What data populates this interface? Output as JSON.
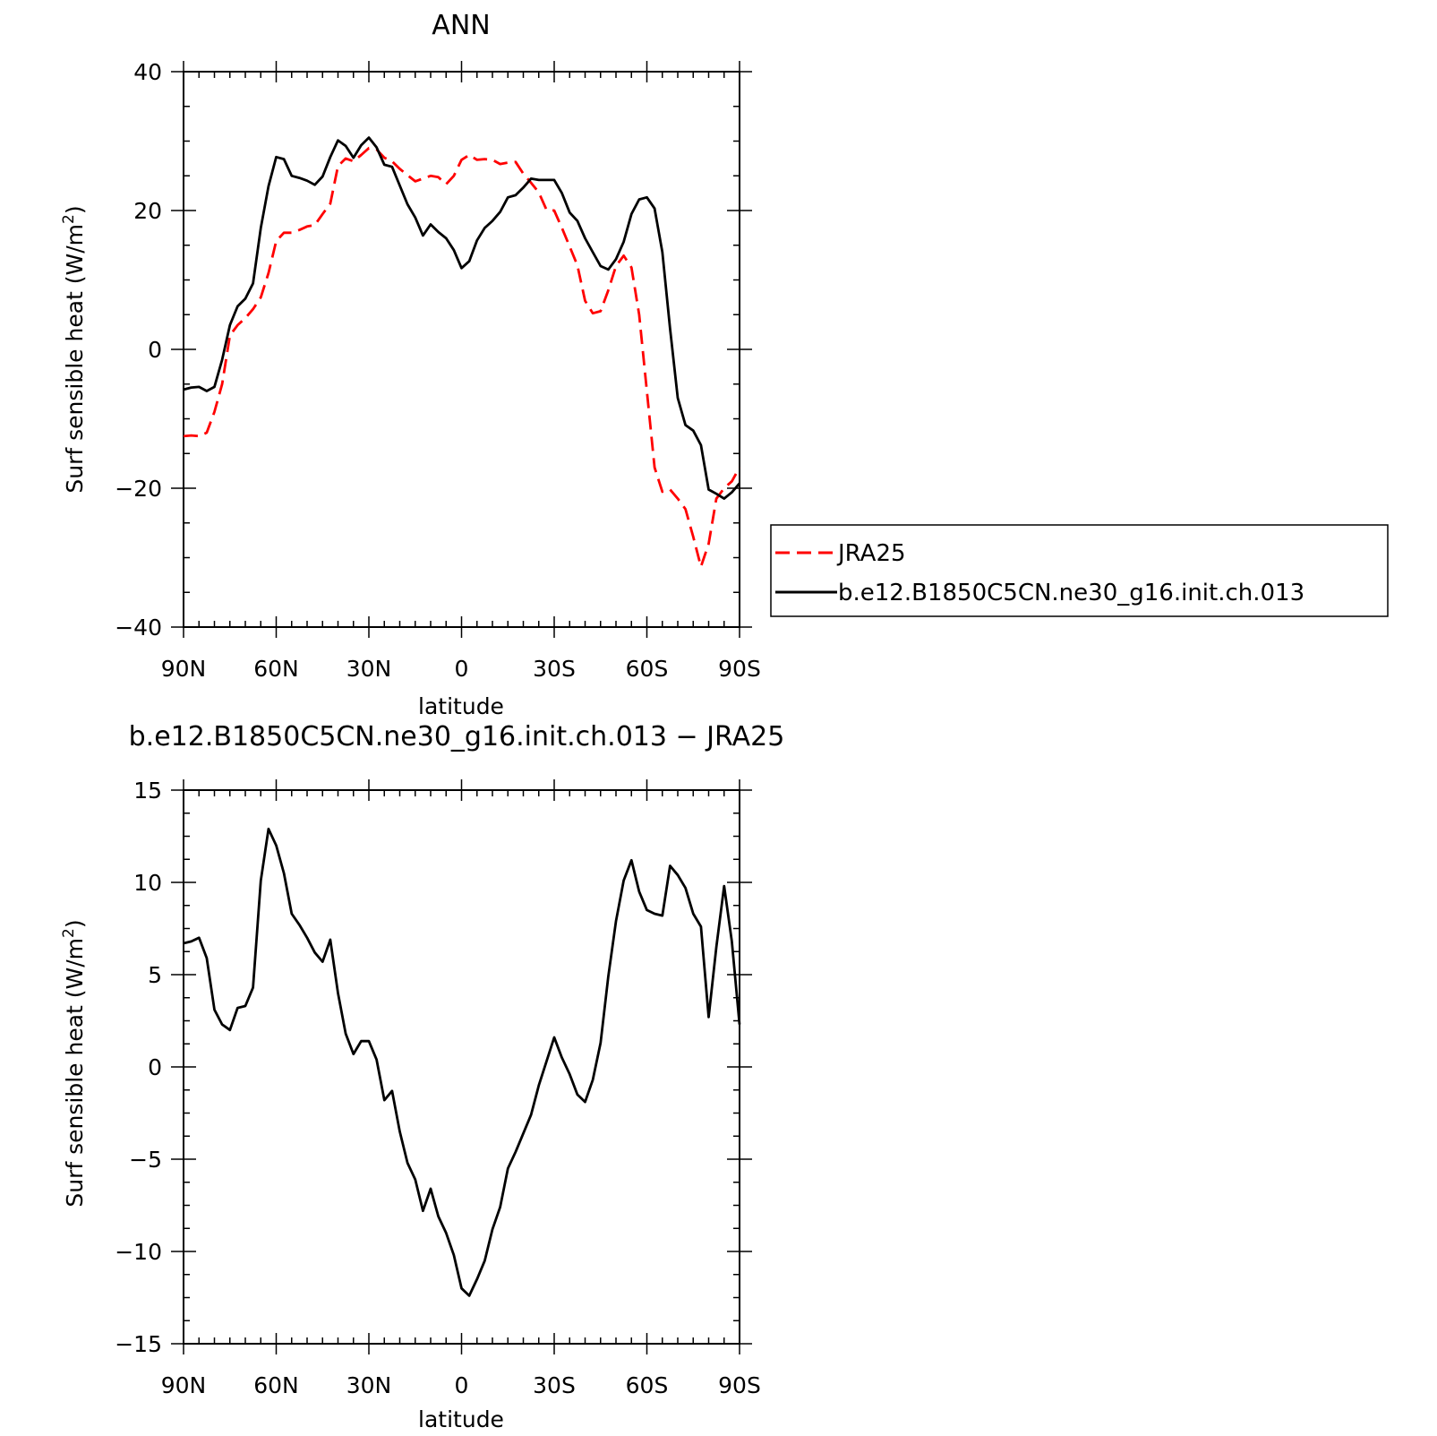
{
  "chart_data": [
    {
      "type": "line",
      "title": "ANN",
      "xlabel": "latitude",
      "ylabel_main": "Surf sensible heat (W/m",
      "ylabel_sup": "2",
      "ylabel_close": ")",
      "xlim": [
        90,
        -90
      ],
      "ylim": [
        -40,
        40
      ],
      "xticks": [
        90,
        60,
        30,
        0,
        -30,
        -60,
        -90
      ],
      "xtick_labels": [
        "90N",
        "60N",
        "30N",
        "0",
        "30S",
        "60S",
        "90S"
      ],
      "yticks": [
        -40,
        -20,
        0,
        20,
        40
      ],
      "ytick_labels": [
        "−40",
        "−20",
        "0",
        "20",
        "40"
      ],
      "legend_position": "right",
      "series": [
        {
          "name": "JRA25",
          "color": "#ff0000",
          "dash": "dashed",
          "x": [
            90,
            87.5,
            85,
            82.5,
            80,
            77.5,
            75,
            72.5,
            70,
            67.5,
            65,
            62.5,
            60,
            57.5,
            55,
            52.5,
            50,
            47.5,
            45,
            42.5,
            40,
            37.5,
            35,
            32.5,
            30,
            27.5,
            25,
            22.5,
            20,
            17.5,
            15,
            12.5,
            10,
            7.5,
            5,
            2.5,
            0,
            -2.5,
            -5,
            -7.5,
            -10,
            -12.5,
            -15,
            -17.5,
            -20,
            -22.5,
            -25,
            -27.5,
            -30,
            -32.5,
            -35,
            -37.5,
            -40,
            -42.5,
            -45,
            -47.5,
            -50,
            -52.5,
            -55,
            -57.5,
            -60,
            -62.5,
            -65,
            -67.5,
            -70,
            -72.5,
            -75,
            -77.5,
            -80,
            -82.5,
            -85,
            -87.5,
            -90
          ],
          "values": [
            -12.5,
            -12.4,
            -12.5,
            -12.0,
            -9.0,
            -5.0,
            2.0,
            3.5,
            4.5,
            5.8,
            7.5,
            11.0,
            15.6,
            16.8,
            16.8,
            17.2,
            17.7,
            17.9,
            19.5,
            21.0,
            26.4,
            27.5,
            27.1,
            28.0,
            29.0,
            28.8,
            27.6,
            27.1,
            26.0,
            25.1,
            24.2,
            24.6,
            25.0,
            24.8,
            23.8,
            25.0,
            27.3,
            28.0,
            27.3,
            27.4,
            27.3,
            26.7,
            26.9,
            27.0,
            25.3,
            24.0,
            22.6,
            20.1,
            20.0,
            17.5,
            14.8,
            12.1,
            7.0,
            5.2,
            5.5,
            8.5,
            12.0,
            13.5,
            11.8,
            5.0,
            -6.0,
            -17.0,
            -20.5,
            -20.2,
            -21.5,
            -23.0,
            -27.0,
            -31.3,
            -28.0,
            -21.5,
            -20.0,
            -19.0,
            -17.0
          ]
        },
        {
          "name": "b.e12.B1850C5CN.ne30_g16.init.ch.013",
          "color": "#000000",
          "dash": "solid",
          "x": [
            90,
            87.5,
            85,
            82.5,
            80,
            77.5,
            75,
            72.5,
            70,
            67.5,
            65,
            62.5,
            60,
            57.5,
            55,
            52.5,
            50,
            47.5,
            45,
            42.5,
            40,
            37.5,
            35,
            32.5,
            30,
            27.5,
            25,
            22.5,
            20,
            17.5,
            15,
            12.5,
            10,
            7.5,
            5,
            2.5,
            0,
            -2.5,
            -5,
            -7.5,
            -10,
            -12.5,
            -15,
            -17.5,
            -20,
            -22.5,
            -25,
            -27.5,
            -30,
            -32.5,
            -35,
            -37.5,
            -40,
            -42.5,
            -45,
            -47.5,
            -50,
            -52.5,
            -55,
            -57.5,
            -60,
            -62.5,
            -65,
            -67.5,
            -70,
            -72.5,
            -75,
            -77.5,
            -80,
            -82.5,
            -85,
            -87.5,
            -90
          ],
          "values": [
            -5.8,
            -5.5,
            -5.4,
            -6.0,
            -5.4,
            -1.5,
            3.5,
            6.2,
            7.3,
            9.5,
            17.5,
            23.5,
            27.7,
            27.4,
            25.0,
            24.7,
            24.3,
            23.7,
            24.9,
            27.7,
            30.1,
            29.3,
            27.6,
            29.4,
            30.5,
            29.1,
            26.6,
            26.3,
            23.6,
            20.9,
            19.0,
            16.4,
            18.0,
            16.9,
            16.0,
            14.3,
            11.7,
            12.7,
            15.7,
            17.5,
            18.5,
            19.8,
            21.9,
            22.2,
            23.3,
            24.6,
            24.4,
            24.4,
            24.4,
            22.5,
            19.7,
            18.5,
            16.0,
            14.0,
            12.0,
            11.5,
            13.0,
            15.5,
            19.5,
            21.6,
            21.9,
            20.3,
            14.0,
            3.0,
            -7.0,
            -10.9,
            -11.7,
            -13.8,
            -20.2,
            -20.8,
            -21.5,
            -20.6,
            -19.3
          ]
        }
      ]
    },
    {
      "type": "line",
      "title": "b.e12.B1850C5CN.ne30_g16.init.ch.013 − JRA25",
      "xlabel": "latitude",
      "ylabel_main": "Surf sensible heat (W/m",
      "ylabel_sup": "2",
      "ylabel_close": ")",
      "xlim": [
        90,
        -90
      ],
      "ylim": [
        -15,
        15
      ],
      "xticks": [
        90,
        60,
        30,
        0,
        -30,
        -60,
        -90
      ],
      "xtick_labels": [
        "90N",
        "60N",
        "30N",
        "0",
        "30S",
        "60S",
        "90S"
      ],
      "yticks": [
        -15,
        -10,
        -5,
        0,
        5,
        10,
        15
      ],
      "ytick_labels": [
        "−15",
        "−10",
        "−5",
        "0",
        "5",
        "10",
        "15"
      ],
      "series": [
        {
          "color": "#000000",
          "dash": "solid",
          "x": [
            90,
            87.5,
            85,
            82.5,
            80,
            77.5,
            75,
            72.5,
            70,
            67.5,
            65,
            62.5,
            60,
            57.5,
            55,
            52.5,
            50,
            47.5,
            45,
            42.5,
            40,
            37.5,
            35,
            32.5,
            30,
            27.5,
            25,
            22.5,
            20,
            17.5,
            15,
            12.5,
            10,
            7.5,
            5,
            2.5,
            0,
            -2.5,
            -5,
            -7.5,
            -10,
            -12.5,
            -15,
            -17.5,
            -20,
            -22.5,
            -25,
            -27.5,
            -30,
            -32.5,
            -35,
            -37.5,
            -40,
            -42.5,
            -45,
            -47.5,
            -50,
            -52.5,
            -55,
            -57.5,
            -60,
            -62.5,
            -65,
            -67.5,
            -70,
            -72.5,
            -75,
            -77.5,
            -80,
            -82.5,
            -85,
            -87.5,
            -90
          ],
          "values": [
            6.7,
            6.8,
            7.0,
            5.9,
            3.1,
            2.3,
            2.0,
            3.2,
            3.3,
            4.3,
            10.1,
            12.9,
            12.0,
            10.5,
            8.3,
            7.7,
            7.0,
            6.2,
            5.7,
            6.9,
            4.0,
            1.8,
            0.7,
            1.4,
            1.4,
            0.4,
            -1.8,
            -1.3,
            -3.5,
            -5.2,
            -6.1,
            -7.8,
            -6.6,
            -8.1,
            -9.0,
            -10.2,
            -12.0,
            -12.4,
            -11.5,
            -10.5,
            -8.8,
            -7.6,
            -5.5,
            -4.6,
            -3.6,
            -2.6,
            -1.0,
            0.3,
            1.6,
            0.5,
            -0.4,
            -1.5,
            -1.9,
            -0.7,
            1.3,
            4.9,
            7.9,
            10.1,
            11.2,
            9.5,
            8.5,
            8.3,
            8.2,
            10.9,
            10.4,
            9.7,
            8.3,
            7.6,
            2.7,
            6.5,
            9.8,
            6.8,
            2.3
          ]
        }
      ]
    }
  ]
}
